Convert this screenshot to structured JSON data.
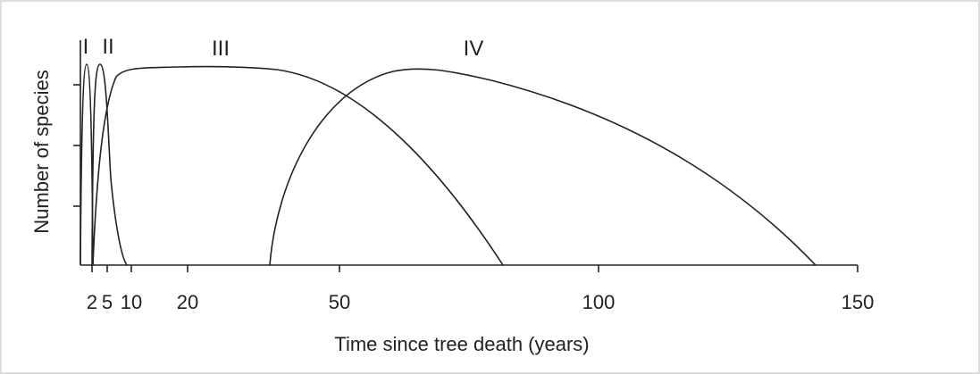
{
  "axis": {
    "y_label": "Number of species",
    "x_label": "Time since tree death (years)",
    "x_ticks": [
      "2",
      "5",
      "10",
      "20",
      "50",
      "100",
      "150"
    ]
  },
  "curves": [
    {
      "label": "I"
    },
    {
      "label": "II"
    },
    {
      "label": "III"
    },
    {
      "label": "IV"
    }
  ]
}
